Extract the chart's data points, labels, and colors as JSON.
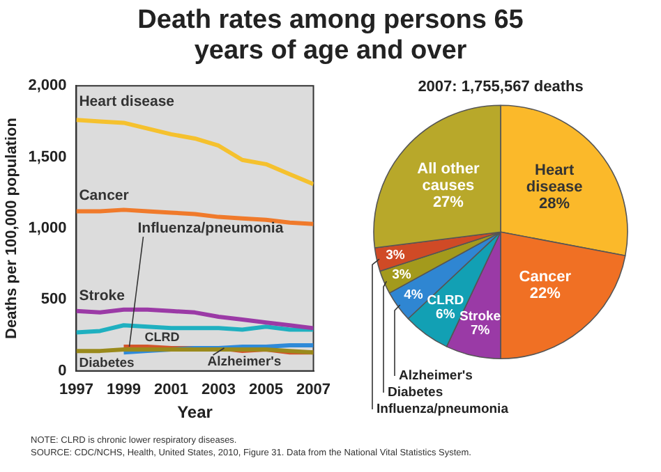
{
  "chart_data": [
    {
      "type": "line",
      "title": "Death rates among persons 65 years of age and over",
      "xlabel": "Year",
      "ylabel": "Deaths per 100,000 population",
      "x": [
        1997,
        1998,
        1999,
        2000,
        2001,
        2002,
        2003,
        2004,
        2005,
        2006,
        2007
      ],
      "xlim": [
        1997,
        2007
      ],
      "xticks": [
        1997,
        1999,
        2001,
        2003,
        2005,
        2007
      ],
      "ylim": [
        0,
        2000
      ],
      "yticks": [
        0,
        {
          "value": 500,
          "label": "500"
        },
        {
          "value": 1000,
          "label": "1,000"
        },
        {
          "value": 1500,
          "label": "1,500"
        },
        {
          "value": 2000,
          "label": "2,000"
        }
      ],
      "grid": false,
      "legend": false,
      "series": [
        {
          "name": "Heart disease",
          "color": "#f5c12e",
          "values": [
            1760,
            1750,
            1740,
            1700,
            1660,
            1630,
            1580,
            1480,
            1450,
            1380,
            1310
          ]
        },
        {
          "name": "Cancer",
          "color": "#f07a2b",
          "values": [
            1120,
            1120,
            1130,
            1120,
            1110,
            1100,
            1080,
            1070,
            1060,
            1040,
            1030
          ]
        },
        {
          "name": "Stroke",
          "color": "#9b3aa6",
          "values": [
            420,
            410,
            430,
            430,
            420,
            410,
            380,
            360,
            340,
            320,
            300
          ]
        },
        {
          "name": "CLRD",
          "color": "#1fb0c0",
          "values": [
            270,
            280,
            320,
            310,
            300,
            300,
            300,
            290,
            310,
            290,
            290
          ]
        },
        {
          "name": "Diabetes",
          "color": "#9a8a1c",
          "values": [
            140,
            140,
            150,
            150,
            150,
            150,
            150,
            150,
            150,
            140,
            130
          ]
        },
        {
          "name": "Alzheimer's",
          "color": "#2f8ad8",
          "values": [
            null,
            null,
            130,
            140,
            150,
            160,
            160,
            170,
            170,
            180,
            180
          ]
        },
        {
          "name": "Influenza/pneumonia",
          "color": "#d2552a",
          "values": [
            null,
            null,
            170,
            170,
            160,
            160,
            160,
            140,
            150,
            130,
            130
          ]
        }
      ],
      "annotations": [
        "NOTE: CLRD is chronic lower respiratory diseases.",
        "SOURCE: CDC/NCHS, Health, United States, 2010, Figure 31. Data from the National Vital Statistics System."
      ]
    },
    {
      "type": "pie",
      "title": "2007: 1,755,567 deaths",
      "categories": [
        "Heart disease",
        "Cancer",
        "Stroke",
        "CLRD",
        "Alzheimer's",
        "Diabetes",
        "Influenza/pneumonia",
        "All other causes"
      ],
      "values": [
        28,
        22,
        7,
        6,
        4,
        3,
        3,
        27
      ],
      "colors": [
        "#fbb92a",
        "#f07024",
        "#9a3aa6",
        "#12a0b4",
        "#2f86d2",
        "#a39a1c",
        "#d04a26",
        "#b8a82a"
      ],
      "value_labels": [
        "28%",
        "22%",
        "7%",
        "6%",
        "4%",
        "3%",
        "3%",
        "27%"
      ]
    }
  ]
}
